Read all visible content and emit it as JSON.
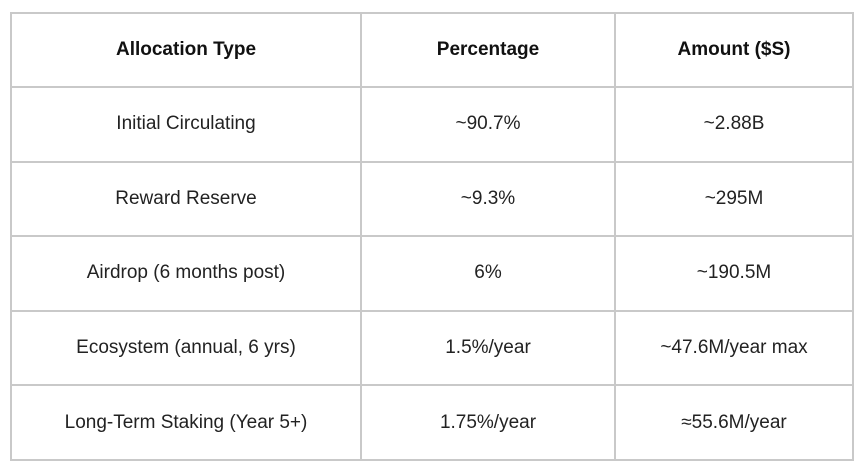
{
  "table": {
    "headers": [
      "Allocation Type",
      "Percentage",
      "Amount ($S)"
    ],
    "rows": [
      [
        "Initial Circulating",
        "~90.7%",
        "~2.88B"
      ],
      [
        "Reward Reserve",
        "~9.3%",
        "~295M"
      ],
      [
        "Airdrop (6 months post)",
        "6%",
        "~190.5M"
      ],
      [
        "Ecosystem (annual, 6 yrs)",
        "1.5%/year",
        "~47.6M/year max"
      ],
      [
        "Long-Term Staking (Year 5+)",
        "1.75%/year",
        "≈55.6M/year"
      ]
    ]
  },
  "colors": {
    "border": "#c9c9c9",
    "background": "#ffffff",
    "text": "#1a1a1a"
  }
}
